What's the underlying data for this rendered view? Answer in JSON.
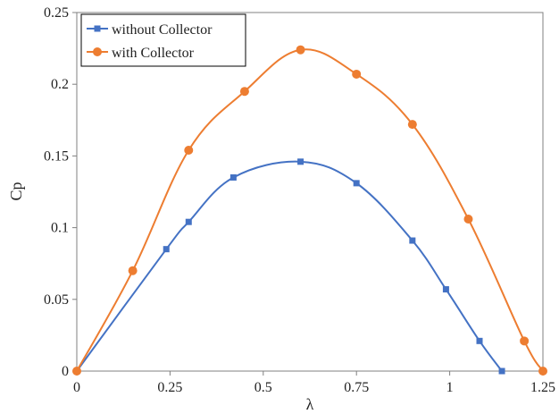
{
  "chart_data": {
    "type": "line",
    "xlabel": "λ",
    "ylabel": "Cp",
    "xlim": [
      0,
      1.25
    ],
    "ylim": [
      0,
      0.25
    ],
    "xticks": [
      0,
      0.25,
      0.5,
      0.75,
      1,
      1.25
    ],
    "xtick_labels": [
      "0",
      "0.25",
      "0.5",
      "0.75",
      "1",
      "1.25"
    ],
    "yticks": [
      0,
      0.05,
      0.1,
      0.15,
      0.2,
      0.25
    ],
    "ytick_labels": [
      "0",
      "0.05",
      "0.1",
      "0.15",
      "0.2",
      "0.25"
    ],
    "grid": false,
    "legend_position": "top-left",
    "series": [
      {
        "name": "without Collector",
        "color": "#4472C4",
        "marker": "square",
        "x": [
          0,
          0.24,
          0.3,
          0.42,
          0.6,
          0.75,
          0.9,
          0.99,
          1.08,
          1.14
        ],
        "y": [
          0,
          0.085,
          0.104,
          0.135,
          0.146,
          0.131,
          0.091,
          0.057,
          0.021,
          0
        ]
      },
      {
        "name": "with Collector",
        "color": "#ED7D31",
        "marker": "circle",
        "x": [
          0,
          0.15,
          0.3,
          0.45,
          0.6,
          0.75,
          0.9,
          1.05,
          1.2,
          1.25
        ],
        "y": [
          0,
          0.07,
          0.154,
          0.195,
          0.224,
          0.207,
          0.172,
          0.106,
          0.021,
          0
        ]
      }
    ]
  }
}
